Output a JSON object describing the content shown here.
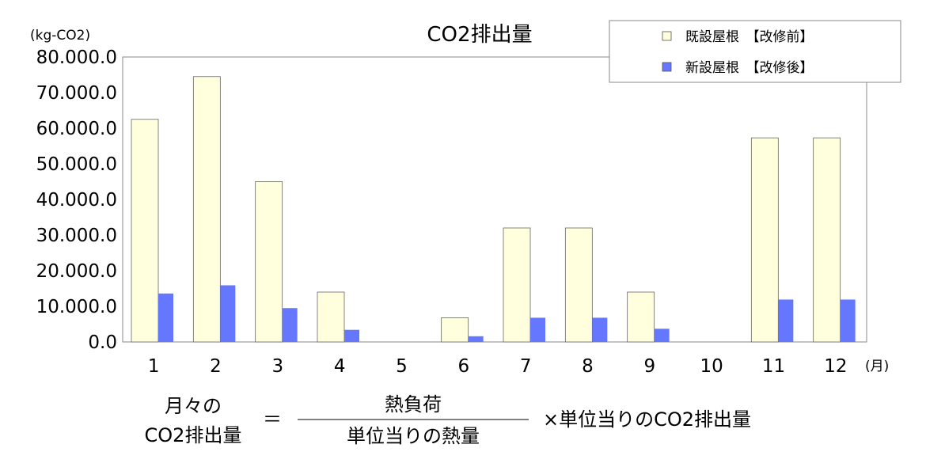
{
  "chart_data": {
    "type": "bar",
    "title": "CO2排出量",
    "ylabel": "(kg-CO2)",
    "xlabel": "(月)",
    "ylim": [
      0,
      80000
    ],
    "yticks": [
      0,
      10000,
      20000,
      30000,
      40000,
      50000,
      60000,
      70000,
      80000
    ],
    "ytick_labels": [
      "0.0",
      "10.000.0",
      "20.000.0",
      "30.000.0",
      "40.000.0",
      "50.000.0",
      "60.000.0",
      "70.000.0",
      "80.000.0"
    ],
    "categories": [
      "1",
      "2",
      "3",
      "4",
      "5",
      "6",
      "7",
      "8",
      "9",
      "10",
      "11",
      "12"
    ],
    "series": [
      {
        "name": "既設屋根　【改修前】",
        "color": "#ffffdd",
        "values": [
          62500,
          74500,
          45000,
          14000,
          0,
          6800,
          32000,
          32000,
          14000,
          0,
          57300,
          57300
        ]
      },
      {
        "name": "新設屋根　【改修後】",
        "color": "#6677ff",
        "values": [
          13600,
          15900,
          9500,
          3400,
          0,
          1600,
          6800,
          6800,
          3700,
          0,
          11900,
          11900
        ]
      }
    ],
    "legend": "top-right",
    "grid": false
  },
  "formula": {
    "lhs_line1": "月々の",
    "lhs_line2": "CO2排出量",
    "equals": "＝",
    "numerator": "熱負荷",
    "denominator": "単位当りの熱量",
    "rhs": "×単位当りのCO2排出量"
  }
}
